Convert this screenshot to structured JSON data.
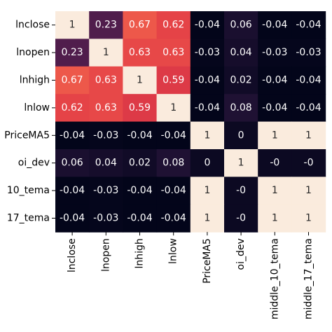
{
  "chart_data": {
    "type": "heatmap",
    "title": "",
    "xlabel": "",
    "ylabel": "",
    "row_labels": [
      "lnclose",
      "lnopen",
      "lnhigh",
      "lnlow",
      "PriceMA5",
      "oi_dev",
      "middle_10_tema",
      "middle_17_tema"
    ],
    "row_labels_visible": [
      "lnclose",
      "lnopen",
      "lnhigh",
      "lnlow",
      "PriceMA5",
      "oi_dev",
      "10_tema",
      "17_tema"
    ],
    "col_labels": [
      "lnclose",
      "lnopen",
      "lnhigh",
      "lnlow",
      "PriceMA5",
      "oi_dev",
      "middle_10_tema",
      "middle_17_tema"
    ],
    "values": [
      [
        1,
        0.23,
        0.67,
        0.62,
        -0.04,
        0.06,
        -0.04,
        -0.04
      ],
      [
        0.23,
        1,
        0.63,
        0.63,
        -0.03,
        0.04,
        -0.03,
        -0.03
      ],
      [
        0.67,
        0.63,
        1,
        0.59,
        -0.04,
        0.02,
        -0.04,
        -0.04
      ],
      [
        0.62,
        0.63,
        0.59,
        1,
        -0.04,
        0.08,
        -0.04,
        -0.04
      ],
      [
        -0.04,
        -0.03,
        -0.04,
        -0.04,
        1,
        0,
        1,
        1
      ],
      [
        0.06,
        0.04,
        0.02,
        0.08,
        0,
        1,
        0,
        0
      ],
      [
        -0.04,
        -0.03,
        -0.04,
        -0.04,
        1,
        0,
        1,
        1
      ],
      [
        -0.04,
        -0.03,
        -0.04,
        -0.04,
        1,
        0,
        1,
        1
      ]
    ],
    "annotations": [
      [
        "1",
        "0.23",
        "0.67",
        "0.62",
        "-0.04",
        "0.06",
        "-0.04",
        "-0.04"
      ],
      [
        "0.23",
        "1",
        "0.63",
        "0.63",
        "-0.03",
        "0.04",
        "-0.03",
        "-0.03"
      ],
      [
        "0.67",
        "0.63",
        "1",
        "0.59",
        "-0.04",
        "0.02",
        "-0.04",
        "-0.04"
      ],
      [
        "0.62",
        "0.63",
        "0.59",
        "1",
        "-0.04",
        "0.08",
        "-0.04",
        "-0.04"
      ],
      [
        "-0.04",
        "-0.03",
        "-0.04",
        "-0.04",
        "1",
        "0",
        "1",
        "1"
      ],
      [
        "0.06",
        "0.04",
        "0.02",
        "0.08",
        "0",
        "1",
        "-0",
        "-0"
      ],
      [
        "-0.04",
        "-0.03",
        "-0.04",
        "-0.04",
        "1",
        "-0",
        "1",
        "1"
      ],
      [
        "-0.04",
        "-0.03",
        "-0.04",
        "-0.04",
        "1",
        "-0",
        "1",
        "1"
      ]
    ],
    "colormap": "rocket",
    "vmin": -0.04,
    "vmax": 1,
    "colors": {
      "light_text": "#ffffff",
      "dark_text": "#262626",
      "tick_color": "#000000"
    }
  }
}
